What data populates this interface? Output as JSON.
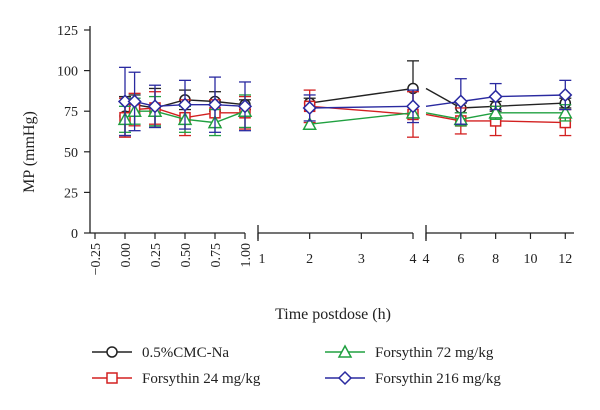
{
  "chart_data": {
    "type": "line",
    "xlabel": "Time postdose (h)",
    "ylabel": "MP (mmHg)",
    "ylim": [
      0,
      125
    ],
    "y_ticks": [
      0,
      25,
      50,
      75,
      100,
      125
    ],
    "grid": false,
    "legend_position": "bottom",
    "segments": [
      {
        "xlim": [
          -0.25,
          1.0
        ],
        "ticks": [
          -0.25,
          0.0,
          0.25,
          0.5,
          0.75,
          1.0
        ],
        "tick_labels": [
          "−0.25",
          "0.00",
          "0.25",
          "0.50",
          "0.75",
          "1.00"
        ],
        "rotated": true
      },
      {
        "xlim": [
          1,
          4
        ],
        "ticks": [
          1,
          2,
          3,
          4
        ],
        "tick_labels": [
          "1",
          "2",
          "3",
          "4"
        ],
        "rotated": false
      },
      {
        "xlim": [
          4,
          12.5
        ],
        "ticks": [
          4,
          6,
          8,
          10,
          12
        ],
        "tick_labels": [
          "4",
          "6",
          "8",
          "10",
          "12"
        ],
        "rotated": false
      }
    ],
    "series": [
      {
        "name": "0.5%CMC-Na",
        "color": "#222222",
        "marker": "circle",
        "points": [
          {
            "x": 0.0,
            "y": 72,
            "err": 12
          },
          {
            "x": 0.08,
            "y": 79,
            "err": 6
          },
          {
            "x": 0.25,
            "y": 77,
            "err": 12
          },
          {
            "x": 0.5,
            "y": 82,
            "err": 6
          },
          {
            "x": 0.75,
            "y": 81,
            "err": 6
          },
          {
            "x": 1.0,
            "y": 79,
            "err": 3
          },
          {
            "x": 2,
            "y": 80,
            "err": 3
          },
          {
            "x": 4,
            "y": 89,
            "err": 17
          },
          {
            "x": 6,
            "y": 77,
            "err": 3
          },
          {
            "x": 8,
            "y": 78,
            "err": 3
          },
          {
            "x": 12,
            "y": 80,
            "err": 3
          }
        ]
      },
      {
        "name": "Forsythin 24 mg/kg",
        "color": "#d32020",
        "marker": "square",
        "points": [
          {
            "x": 0.0,
            "y": 71,
            "err": 12
          },
          {
            "x": 0.08,
            "y": 76,
            "err": 10
          },
          {
            "x": 0.25,
            "y": 77,
            "err": 10
          },
          {
            "x": 0.5,
            "y": 71,
            "err": 11
          },
          {
            "x": 0.75,
            "y": 74,
            "err": 8
          },
          {
            "x": 1.0,
            "y": 74,
            "err": 10
          },
          {
            "x": 2,
            "y": 78,
            "err": 10
          },
          {
            "x": 4,
            "y": 73,
            "err": 14
          },
          {
            "x": 6,
            "y": 69,
            "err": 8
          },
          {
            "x": 8,
            "y": 69,
            "err": 9
          },
          {
            "x": 12,
            "y": 68,
            "err": 8
          }
        ]
      },
      {
        "name": "Forsythin 72 mg/kg",
        "color": "#20a040",
        "marker": "triangle",
        "points": [
          {
            "x": 0.0,
            "y": 70,
            "err": 8
          },
          {
            "x": 0.08,
            "y": 75,
            "err": 8
          },
          {
            "x": 0.25,
            "y": 75,
            "err": 9
          },
          {
            "x": 0.5,
            "y": 70,
            "err": 8
          },
          {
            "x": 0.75,
            "y": 68,
            "err": 8
          },
          {
            "x": 1.0,
            "y": 75,
            "err": 10
          },
          {
            "x": 2,
            "y": 67,
            "err": 0
          },
          {
            "x": 4,
            "y": 74,
            "err": 0
          },
          {
            "x": 6,
            "y": 70,
            "err": 4
          },
          {
            "x": 8,
            "y": 74,
            "err": 4
          },
          {
            "x": 12,
            "y": 74,
            "err": 5
          }
        ]
      },
      {
        "name": "Forsythin 216 mg/kg",
        "color": "#2a2aa0",
        "marker": "diamond",
        "points": [
          {
            "x": 0.0,
            "y": 81,
            "err": 21
          },
          {
            "x": 0.08,
            "y": 81,
            "err": 18
          },
          {
            "x": 0.25,
            "y": 78,
            "err": 13
          },
          {
            "x": 0.5,
            "y": 79,
            "err": 15
          },
          {
            "x": 0.75,
            "y": 79,
            "err": 17
          },
          {
            "x": 1.0,
            "y": 78,
            "err": 15
          },
          {
            "x": 2,
            "y": 77,
            "err": 8
          },
          {
            "x": 4,
            "y": 78,
            "err": 10
          },
          {
            "x": 6,
            "y": 81,
            "err": 14
          },
          {
            "x": 8,
            "y": 84,
            "err": 8
          },
          {
            "x": 12,
            "y": 85,
            "err": 9
          }
        ]
      }
    ]
  }
}
